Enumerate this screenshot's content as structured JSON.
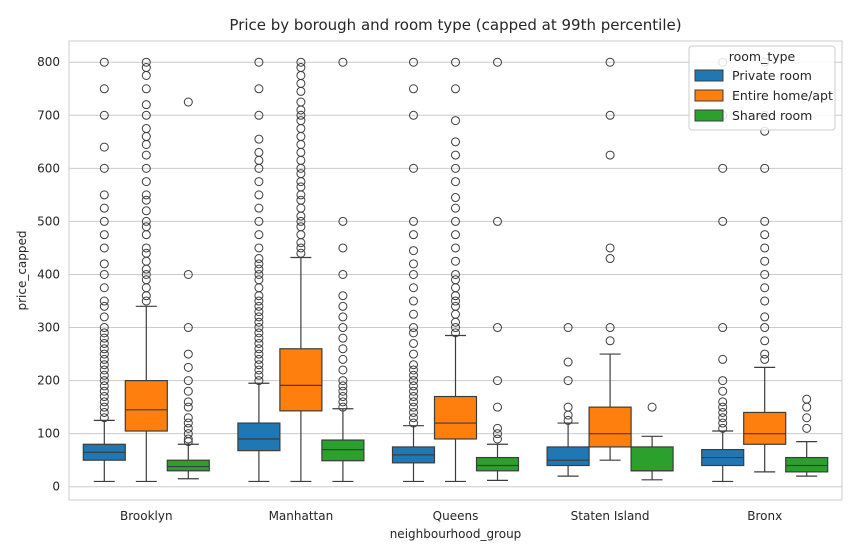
{
  "chart_data": {
    "type": "box",
    "title": "Price by borough and room type (capped at 99th percentile)",
    "xlabel": "neighbourhood_group",
    "ylabel": "price_capped",
    "ylim": [
      -25,
      840
    ],
    "yticks": [
      0,
      100,
      200,
      300,
      400,
      500,
      600,
      700,
      800
    ],
    "grid": "horizontal",
    "legend": {
      "title": "room_type",
      "placement": "top-right"
    },
    "categories": [
      "Brooklyn",
      "Manhattan",
      "Queens",
      "Staten Island",
      "Bronx"
    ],
    "series": [
      {
        "name": "Private room",
        "color": "#1f77b4",
        "boxes": [
          {
            "whislo": 10,
            "q1": 50,
            "med": 65,
            "q3": 80,
            "whishi": 125,
            "fliers": [
              130,
              140,
              150,
              160,
              170,
              180,
              190,
              200,
              210,
              220,
              230,
              240,
              250,
              260,
              270,
              280,
              290,
              300,
              320,
              340,
              350,
              375,
              400,
              420,
              450,
              475,
              500,
              525,
              550,
              600,
              640,
              700,
              750,
              800
            ]
          },
          {
            "whislo": 10,
            "q1": 68,
            "med": 90,
            "q3": 120,
            "whishi": 195,
            "fliers": [
              200,
              210,
              220,
              230,
              240,
              250,
              260,
              270,
              280,
              290,
              300,
              310,
              320,
              330,
              340,
              350,
              360,
              375,
              390,
              400,
              410,
              420,
              430,
              450,
              475,
              500,
              525,
              550,
              575,
              600,
              615,
              630,
              655,
              700,
              750,
              800
            ]
          },
          {
            "whislo": 10,
            "q1": 45,
            "med": 60,
            "q3": 75,
            "whishi": 115,
            "fliers": [
              120,
              130,
              140,
              150,
              160,
              170,
              180,
              190,
              200,
              210,
              220,
              230,
              250,
              270,
              290,
              300,
              325,
              350,
              375,
              400,
              420,
              445,
              475,
              500,
              600,
              700,
              750,
              800
            ]
          },
          {
            "whislo": 20,
            "q1": 40,
            "med": 50,
            "q3": 75,
            "whishi": 120,
            "fliers": [
              125,
              135,
              150,
              200,
              235,
              300
            ]
          },
          {
            "whislo": 10,
            "q1": 40,
            "med": 55,
            "q3": 70,
            "whishi": 105,
            "fliers": [
              110,
              120,
              130,
              140,
              150,
              160,
              180,
              200,
              240,
              300,
              500,
              600,
              700,
              800
            ]
          }
        ]
      },
      {
        "name": "Entire home/apt",
        "color": "#ff7f0e",
        "boxes": [
          {
            "whislo": 10,
            "q1": 105,
            "med": 145,
            "q3": 200,
            "whishi": 340,
            "fliers": [
              350,
              360,
              375,
              390,
              400,
              410,
              425,
              440,
              450,
              475,
              490,
              500,
              520,
              540,
              550,
              575,
              600,
              625,
              645,
              660,
              675,
              700,
              720,
              750,
              775,
              790,
              800
            ]
          },
          {
            "whislo": 10,
            "q1": 143,
            "med": 191,
            "q3": 260,
            "whishi": 432,
            "fliers": [
              440,
              450,
              460,
              475,
              490,
              500,
              510,
              525,
              540,
              550,
              565,
              575,
              590,
              600,
              615,
              630,
              645,
              660,
              675,
              690,
              700,
              710,
              725,
              745,
              760,
              775,
              790,
              800
            ]
          },
          {
            "whislo": 10,
            "q1": 90,
            "med": 120,
            "q3": 170,
            "whishi": 285,
            "fliers": [
              290,
              300,
              310,
              325,
              340,
              350,
              360,
              375,
              390,
              400,
              425,
              450,
              475,
              500,
              525,
              545,
              575,
              600,
              625,
              650,
              690,
              750,
              800
            ]
          },
          {
            "whislo": 50,
            "q1": 75,
            "med": 100,
            "q3": 150,
            "whishi": 250,
            "fliers": [
              275,
              300,
              430,
              450,
              625,
              700,
              800
            ]
          },
          {
            "whislo": 28,
            "q1": 80,
            "med": 100,
            "q3": 140,
            "whishi": 225,
            "fliers": [
              240,
              250,
              275,
              300,
              320,
              350,
              375,
              400,
              425,
              450,
              475,
              500,
              600,
              670,
              700,
              800
            ]
          }
        ]
      },
      {
        "name": "Shared room",
        "color": "#2ca02c",
        "boxes": [
          {
            "whislo": 15,
            "q1": 30,
            "med": 38,
            "q3": 50,
            "whishi": 80,
            "fliers": [
              85,
              90,
              100,
              110,
              120,
              130,
              150,
              160,
              180,
              200,
              225,
              250,
              300,
              400,
              725
            ]
          },
          {
            "whislo": 10,
            "q1": 49,
            "med": 70,
            "q3": 88,
            "whishi": 147,
            "fliers": [
              150,
              160,
              170,
              180,
              190,
              200,
              220,
              240,
              260,
              280,
              300,
              320,
              340,
              360,
              400,
              450,
              500,
              800
            ]
          },
          {
            "whislo": 12,
            "q1": 30,
            "med": 40,
            "q3": 55,
            "whishi": 80,
            "fliers": [
              90,
              100,
              110,
              150,
              200,
              300,
              500,
              800
            ]
          },
          {
            "whislo": 13,
            "q1": 30,
            "med": 30,
            "q3": 75,
            "whishi": 95,
            "fliers": [
              150
            ]
          },
          {
            "whislo": 20,
            "q1": 28,
            "med": 40,
            "q3": 55,
            "whishi": 85,
            "fliers": [
              110,
              130,
              150,
              165
            ]
          }
        ]
      }
    ]
  }
}
